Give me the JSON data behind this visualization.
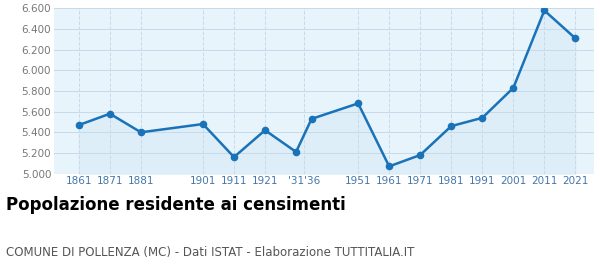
{
  "years": [
    1861,
    1871,
    1881,
    1901,
    1911,
    1921,
    1931,
    1936,
    1951,
    1961,
    1971,
    1981,
    1991,
    2001,
    2011,
    2021
  ],
  "tick_labels": [
    "1861",
    "1871",
    "1881",
    "1901",
    "1911",
    "1921",
    "'31'36",
    "1951",
    "1961",
    "1971",
    "1981",
    "1991",
    "2001",
    "2011",
    "2021"
  ],
  "tick_positions": [
    1861,
    1871,
    1881,
    1901,
    1911,
    1921,
    1933.5,
    1951,
    1961,
    1971,
    1981,
    1991,
    2001,
    2011,
    2021
  ],
  "values": [
    5470,
    5580,
    5400,
    5480,
    5160,
    5420,
    5210,
    5530,
    5680,
    5070,
    5180,
    5460,
    5540,
    5830,
    6580,
    6310
  ],
  "ylim": [
    5000,
    6600
  ],
  "yticks": [
    5000,
    5200,
    5400,
    5600,
    5800,
    6000,
    6200,
    6400,
    6600
  ],
  "xlim": [
    1853,
    2027
  ],
  "line_color": "#1a72b8",
  "fill_color": "#ddeef8",
  "dot_color": "#1a72b8",
  "grid_color": "#c8daea",
  "bg_color": "#e8f4fb",
  "title": "Popolazione residente ai censimenti",
  "subtitle": "COMUNE DI POLLENZA (MC) - Dati ISTAT - Elaborazione TUTTITALIA.IT",
  "title_fontsize": 12,
  "subtitle_fontsize": 8.5,
  "axis_label_color": "#4477aa",
  "ytick_color": "#777777",
  "tick_fontsize": 7.5,
  "linewidth": 1.8,
  "dot_size": 20
}
